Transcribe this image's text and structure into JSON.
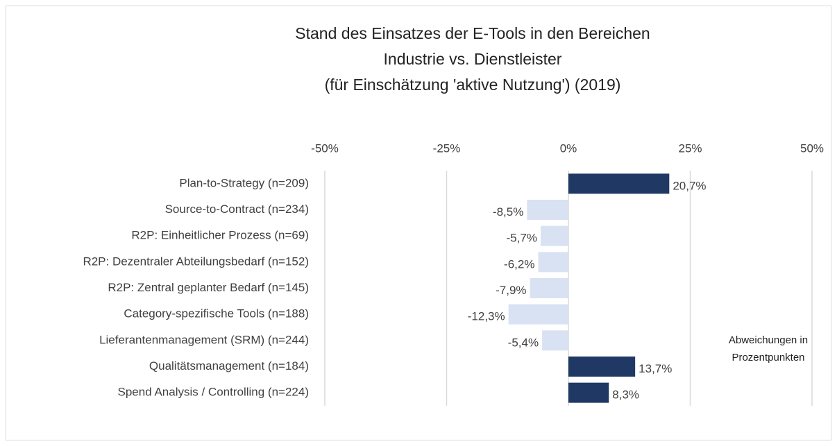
{
  "chart_data": {
    "type": "bar",
    "orientation": "horizontal",
    "title": [
      "Stand des Einsatzes der E-Tools in den Bereichen",
      "Industrie vs. Dienstleister",
      "(für Einschätzung 'aktive Nutzung') (2019)"
    ],
    "categories": [
      "Plan-to-Strategy (n=209)",
      "Source-to-Contract (n=234)",
      "R2P: Einheitlicher Prozess (n=69)",
      "R2P: Dezentraler Abteilungsbedarf (n=152)",
      "R2P: Zentral geplanter Bedarf (n=145)",
      "Category-spezifische Tools (n=188)",
      "Lieferantenmanagement (SRM) (n=244)",
      "Qualitätsmanagement (n=184)",
      "Spend Analysis / Controlling (n=224)"
    ],
    "values": [
      20.7,
      -8.5,
      -5.7,
      -6.2,
      -7.9,
      -12.3,
      -5.4,
      13.7,
      8.3
    ],
    "value_labels": [
      "20,7%",
      "-8,5%",
      "-5,7%",
      "-6,2%",
      "-7,9%",
      "-12,3%",
      "-5,4%",
      "13,7%",
      "8,3%"
    ],
    "positive_color": "#1f3864",
    "negative_color": "#d9e2f3",
    "xlim": [
      -50,
      50
    ],
    "xticks": [
      {
        "value": -50,
        "label": "-50%"
      },
      {
        "value": -25,
        "label": "-25%"
      },
      {
        "value": 0,
        "label": "0%"
      },
      {
        "value": 25,
        "label": "25%"
      },
      {
        "value": 50,
        "label": "50%"
      }
    ],
    "grid": true,
    "annotation": [
      "Abweichungen in",
      "Prozentpunkten"
    ]
  }
}
